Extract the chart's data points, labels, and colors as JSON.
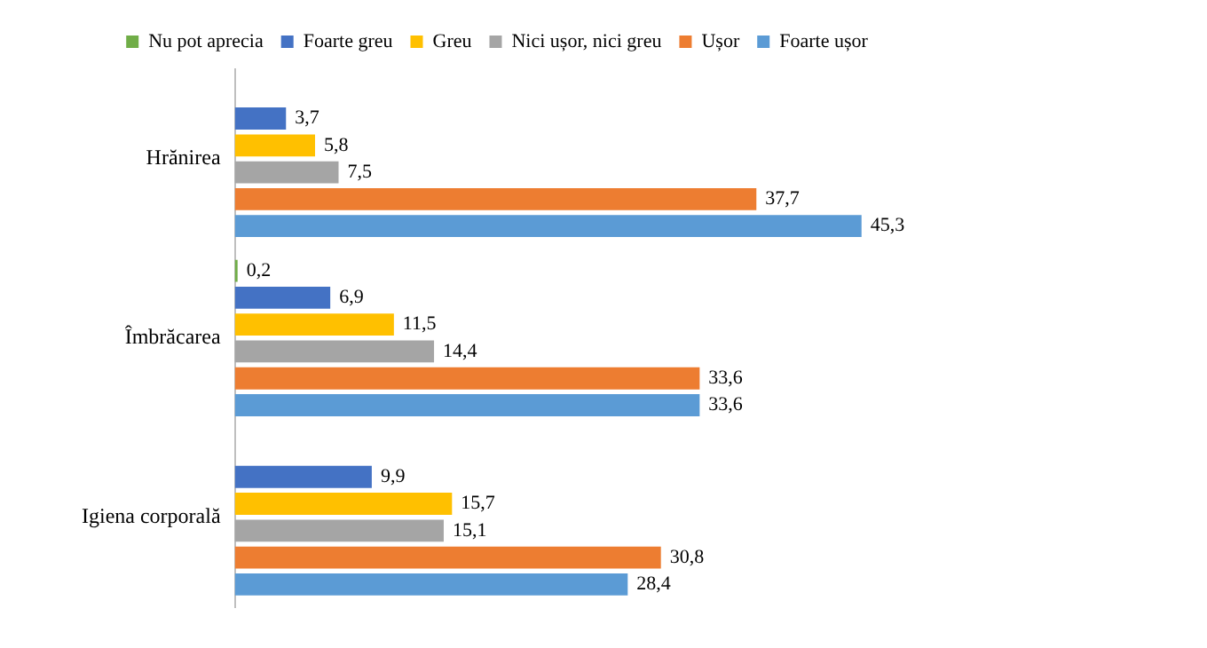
{
  "chart_data": {
    "type": "bar",
    "orientation": "horizontal",
    "categories": [
      "Hrănirea",
      "Îmbrăcarea",
      "Igiena corporală"
    ],
    "legend": "top",
    "series": [
      {
        "name": "Nu pot aprecia",
        "color": "#70ad47",
        "values": [
          null,
          0.2,
          null
        ],
        "value_labels": [
          null,
          "0,2",
          null
        ]
      },
      {
        "name": "Foarte greu",
        "color": "#4472c4",
        "values": [
          3.7,
          6.9,
          9.9
        ],
        "value_labels": [
          "3,7",
          "6,9",
          "9,9"
        ]
      },
      {
        "name": "Greu",
        "color": "#ffc000",
        "values": [
          5.8,
          11.5,
          15.7
        ],
        "value_labels": [
          "5,8",
          "11,5",
          "15,7"
        ]
      },
      {
        "name": "Nici ușor, nici greu",
        "color": "#a5a5a5",
        "values": [
          7.5,
          14.4,
          15.1
        ],
        "value_labels": [
          "7,5",
          "14,4",
          "15,1"
        ]
      },
      {
        "name": "Ușor",
        "color": "#ed7d31",
        "values": [
          37.7,
          33.6,
          30.8
        ],
        "value_labels": [
          "37,7",
          "33,6",
          "30,8"
        ]
      },
      {
        "name": "Foarte ușor",
        "color": "#5b9bd5",
        "values": [
          45.3,
          33.6,
          28.4
        ],
        "value_labels": [
          "45,3",
          "33,6",
          "28,4"
        ]
      }
    ]
  }
}
